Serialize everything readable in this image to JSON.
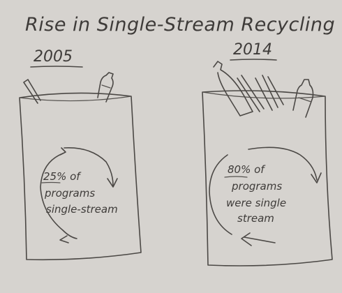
{
  "title": "Rise in Single-Stream Recycling",
  "bins": [
    {
      "year": "2005",
      "percent": "25%",
      "line1_rest": " of",
      "line2": "programs",
      "line3": "single-stream"
    },
    {
      "year": "2014",
      "percent": "80%",
      "line1_rest": " of",
      "line2": "programs",
      "line3": "were single",
      "line4": "stream"
    }
  ]
}
